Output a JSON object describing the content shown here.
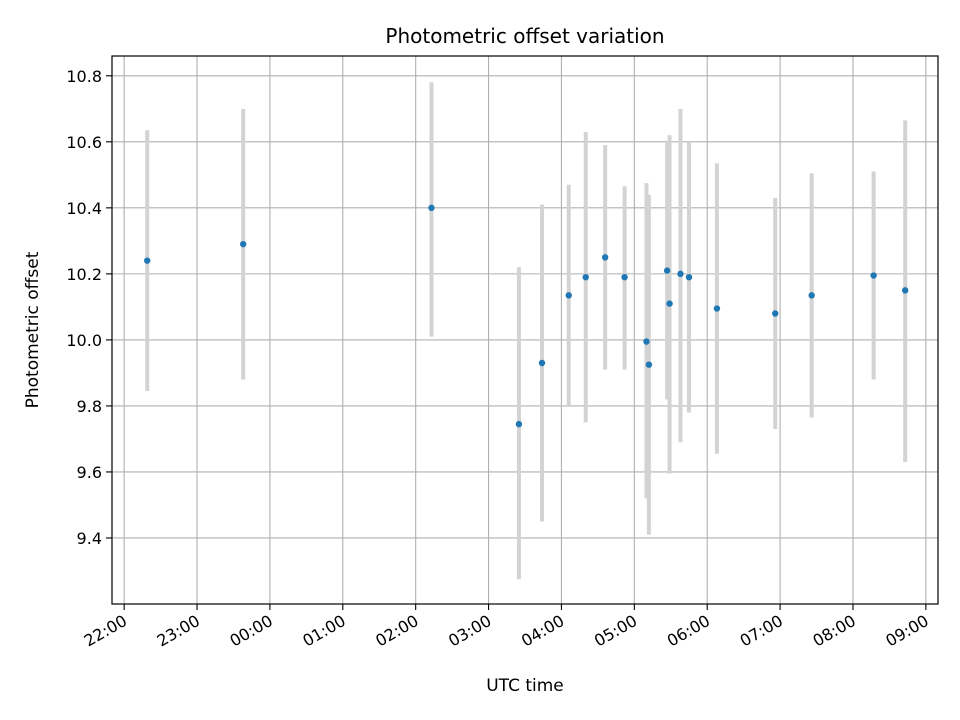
{
  "chart_data": {
    "type": "scatter",
    "title": "Photometric offset variation",
    "xlabel": "UTC time",
    "ylabel": "Photometric offset",
    "grid": true,
    "legend": "none",
    "x_axis_type": "time",
    "xlim": [
      "21:50",
      "09:10"
    ],
    "ylim": [
      9.2,
      10.86
    ],
    "x_ticks": [
      "22:00",
      "23:00",
      "00:00",
      "01:00",
      "02:00",
      "03:00",
      "04:00",
      "05:00",
      "06:00",
      "07:00",
      "08:00",
      "09:00"
    ],
    "y_ticks": [
      "9.4",
      "9.6",
      "9.8",
      "10.0",
      "10.2",
      "10.4",
      "10.6",
      "10.8"
    ],
    "colors": {
      "marker": "#1f77b4",
      "errorbar": "#d3d3d3",
      "grid": "#b0b0b0"
    },
    "series": [
      {
        "points": [
          {
            "x": "22:19",
            "y": 10.24,
            "low": 9.845,
            "high": 10.635
          },
          {
            "x": "23:38",
            "y": 10.29,
            "low": 9.88,
            "high": 10.7
          },
          {
            "x": "02:13",
            "y": 10.4,
            "low": 10.01,
            "high": 10.78
          },
          {
            "x": "03:25",
            "y": 9.745,
            "low": 9.275,
            "high": 10.22
          },
          {
            "x": "03:44",
            "y": 9.93,
            "low": 9.45,
            "high": 10.41
          },
          {
            "x": "04:06",
            "y": 10.135,
            "low": 9.8,
            "high": 10.47
          },
          {
            "x": "04:20",
            "y": 10.19,
            "low": 9.75,
            "high": 10.63
          },
          {
            "x": "04:36",
            "y": 10.25,
            "low": 9.91,
            "high": 10.59
          },
          {
            "x": "04:52",
            "y": 10.19,
            "low": 9.91,
            "high": 10.465
          },
          {
            "x": "05:10",
            "y": 9.995,
            "low": 9.52,
            "high": 10.475
          },
          {
            "x": "05:12",
            "y": 9.925,
            "low": 9.41,
            "high": 10.44
          },
          {
            "x": "05:27",
            "y": 10.21,
            "low": 9.82,
            "high": 10.6
          },
          {
            "x": "05:29",
            "y": 10.11,
            "low": 9.595,
            "high": 10.62
          },
          {
            "x": "05:38",
            "y": 10.2,
            "low": 9.69,
            "high": 10.7
          },
          {
            "x": "05:45",
            "y": 10.19,
            "low": 9.78,
            "high": 10.6
          },
          {
            "x": "06:08",
            "y": 10.095,
            "low": 9.655,
            "high": 10.535
          },
          {
            "x": "06:56",
            "y": 10.08,
            "low": 9.73,
            "high": 10.43
          },
          {
            "x": "07:26",
            "y": 10.135,
            "low": 9.765,
            "high": 10.505
          },
          {
            "x": "08:17",
            "y": 10.195,
            "low": 9.88,
            "high": 10.51
          },
          {
            "x": "08:43",
            "y": 10.15,
            "low": 9.63,
            "high": 10.665
          }
        ]
      }
    ]
  }
}
